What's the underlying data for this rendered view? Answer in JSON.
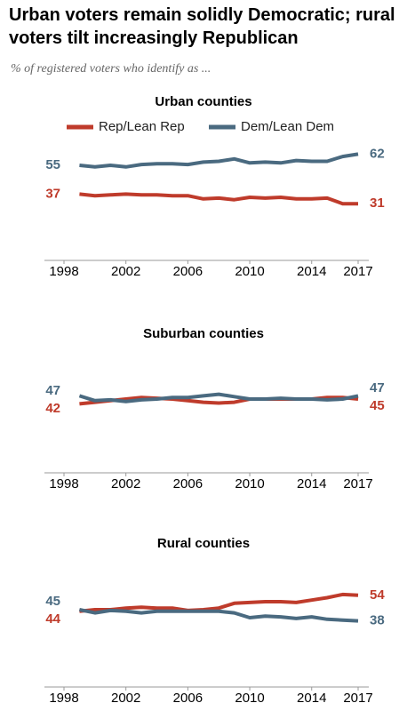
{
  "title": "Urban voters remain solidly Democratic; rural voters tilt increasingly Republican",
  "subtitle": "% of registered voters who identify as ...",
  "chart_data": [
    {
      "type": "line",
      "title": "Urban counties",
      "x": [
        1999,
        2000,
        2001,
        2002,
        2003,
        2004,
        2005,
        2006,
        2007,
        2008,
        2009,
        2010,
        2011,
        2012,
        2013,
        2014,
        2015,
        2016,
        2017
      ],
      "xticks": [
        1998,
        2002,
        2006,
        2010,
        2014,
        2017
      ],
      "series": [
        {
          "name": "Rep/Lean Rep",
          "color": "#bf3b2b",
          "values": [
            37,
            36,
            36.5,
            37,
            36.5,
            36.5,
            36,
            36,
            34,
            34.5,
            33.5,
            35,
            34.5,
            35,
            34,
            34,
            34.5,
            31,
            31
          ]
        },
        {
          "name": "Dem/Lean Dem",
          "color": "#4a6a80",
          "values": [
            55,
            54,
            55,
            54,
            55.5,
            56,
            56,
            55.5,
            57,
            57.5,
            59,
            56.5,
            57,
            56.5,
            58,
            57.5,
            57.5,
            60.5,
            62
          ]
        }
      ]
    },
    {
      "type": "line",
      "title": "Suburban counties",
      "x": [
        1999,
        2000,
        2001,
        2002,
        2003,
        2004,
        2005,
        2006,
        2007,
        2008,
        2009,
        2010,
        2011,
        2012,
        2013,
        2014,
        2015,
        2016,
        2017
      ],
      "xticks": [
        1998,
        2002,
        2006,
        2010,
        2014,
        2017
      ],
      "series": [
        {
          "color": "#bf3b2b",
          "values": [
            42,
            43,
            44,
            45,
            46,
            45.5,
            45,
            44,
            43,
            42.5,
            43,
            45,
            45,
            45,
            45,
            45,
            46,
            46,
            45
          ]
        },
        {
          "color": "#4a6a80",
          "values": [
            47,
            44,
            44.5,
            43.5,
            44.5,
            45,
            46,
            46,
            47,
            48,
            46.5,
            45,
            45,
            45.5,
            45,
            45,
            44.5,
            45,
            47
          ]
        }
      ]
    },
    {
      "type": "line",
      "title": "Rural counties",
      "x": [
        1999,
        2000,
        2001,
        2002,
        2003,
        2004,
        2005,
        2006,
        2007,
        2008,
        2009,
        2010,
        2011,
        2012,
        2013,
        2014,
        2015,
        2016,
        2017
      ],
      "xticks": [
        1998,
        2002,
        2006,
        2010,
        2014,
        2017
      ],
      "series": [
        {
          "color": "#bf3b2b",
          "values": [
            44,
            45,
            45,
            46,
            46.5,
            46,
            46,
            44.5,
            45,
            46,
            49,
            49.5,
            50,
            50,
            49.5,
            51,
            52.5,
            54.5,
            54
          ]
        },
        {
          "color": "#4a6a80",
          "values": [
            45,
            43,
            44.5,
            44,
            43,
            44,
            44,
            44,
            44,
            44,
            43,
            40,
            41,
            40.5,
            39.5,
            40.5,
            39,
            38.5,
            38
          ]
        }
      ]
    }
  ]
}
